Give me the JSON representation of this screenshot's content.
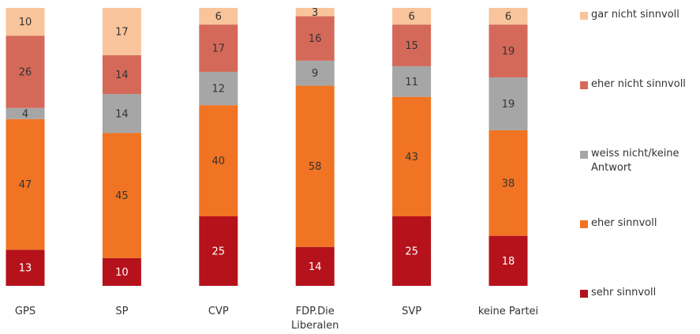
{
  "chart_data": {
    "type": "stacked_bar",
    "categories": [
      "GPS",
      "SP",
      "CVP",
      "FDP.Die Liberalen",
      "SVP",
      "keine Partei"
    ],
    "series": [
      {
        "name": "sehr sinnvoll",
        "color": "#b5121b",
        "values": [
          13,
          10,
          25,
          14,
          25,
          18
        ]
      },
      {
        "name": "eher sinnvoll",
        "color": "#f07423",
        "values": [
          47,
          45,
          40,
          58,
          43,
          38
        ]
      },
      {
        "name": "weiss nicht/keine Antwort",
        "color": "#a6a6a6",
        "values": [
          4,
          14,
          12,
          9,
          11,
          19
        ]
      },
      {
        "name": "eher nicht sinnvoll",
        "color": "#d4695a",
        "values": [
          26,
          14,
          17,
          16,
          15,
          19
        ]
      },
      {
        "name": "gar nicht sinnvoll",
        "color": "#f9c49b",
        "values": [
          10,
          17,
          6,
          3,
          6,
          6
        ]
      }
    ]
  }
}
